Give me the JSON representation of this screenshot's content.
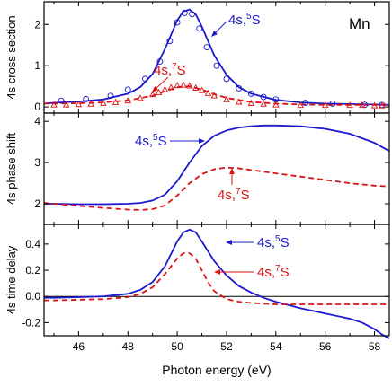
{
  "element_label": "Mn",
  "colors": {
    "blue": "#1a1acc",
    "red": "#dd1111",
    "axis": "#000000"
  },
  "chart_data": [
    {
      "type": "line",
      "ylabel": "4s cross section",
      "xlim": [
        44.6,
        58.6
      ],
      "ylim": [
        -0.15,
        2.55
      ],
      "yticks": [
        "0",
        "1",
        "2"
      ],
      "series": [
        {
          "name": "4s,5S",
          "style": "solid",
          "color": "#1a1acc",
          "x": [
            44.6,
            45,
            46,
            47,
            48,
            48.5,
            49,
            49.5,
            50,
            50.25,
            50.5,
            50.75,
            51,
            51.5,
            52,
            52.5,
            53,
            54,
            55,
            56,
            57,
            58,
            58.6
          ],
          "y": [
            0.08,
            0.1,
            0.13,
            0.18,
            0.32,
            0.48,
            0.8,
            1.4,
            2.1,
            2.32,
            2.36,
            2.25,
            1.95,
            1.25,
            0.78,
            0.48,
            0.32,
            0.17,
            0.11,
            0.08,
            0.07,
            0.06,
            0.05
          ]
        },
        {
          "name": "4s,7S",
          "style": "dashed",
          "color": "#dd1111",
          "x": [
            44.6,
            45,
            46,
            47,
            48,
            49,
            49.5,
            50,
            50.5,
            51,
            51.5,
            52,
            53,
            54,
            55,
            56,
            57,
            58,
            58.6
          ],
          "y": [
            0.08,
            0.08,
            0.09,
            0.11,
            0.16,
            0.27,
            0.38,
            0.48,
            0.5,
            0.42,
            0.31,
            0.22,
            0.12,
            0.08,
            0.06,
            0.05,
            0.05,
            0.05,
            0.05
          ]
        },
        {
          "name": "open circles",
          "style": "circle",
          "color": "#1a1acc",
          "x": [
            45.3,
            46.3,
            47.3,
            48.0,
            48.7,
            49.3,
            49.7,
            50.0,
            50.3,
            50.6,
            50.9,
            51.2,
            51.6,
            52.0,
            52.5,
            53.0,
            53.5,
            54.0,
            55.2,
            56.3,
            57.6,
            58.3
          ],
          "y": [
            0.15,
            0.19,
            0.27,
            0.42,
            0.68,
            1.1,
            1.6,
            2.05,
            2.28,
            2.25,
            1.9,
            1.45,
            1.0,
            0.68,
            0.45,
            0.32,
            0.24,
            0.18,
            0.1,
            0.08,
            0.05,
            0.05
          ]
        },
        {
          "name": "open triangles",
          "style": "triangle",
          "color": "#dd1111",
          "x": [
            45,
            45.5,
            46,
            46.5,
            47,
            47.5,
            48,
            48.5,
            49,
            49.25,
            49.5,
            49.75,
            50,
            50.25,
            50.5,
            50.75,
            51,
            51.25,
            51.5,
            52,
            52.5,
            53,
            53.5,
            54,
            55,
            56,
            57,
            57.5,
            58,
            58.3
          ],
          "y": [
            0.05,
            0.05,
            0.06,
            0.07,
            0.09,
            0.11,
            0.15,
            0.21,
            0.3,
            0.35,
            0.42,
            0.47,
            0.52,
            0.53,
            0.51,
            0.46,
            0.4,
            0.33,
            0.27,
            0.18,
            0.12,
            0.09,
            0.07,
            0.05,
            0.04,
            0.04,
            0.04,
            0.04,
            0.03,
            0.03
          ]
        }
      ],
      "annotations": [
        {
          "base": "4s,",
          "sup": "5",
          "end": "S",
          "color": "#1a1acc"
        },
        {
          "base": "4s,",
          "sup": "7",
          "end": "S",
          "color": "#dd1111"
        }
      ]
    },
    {
      "type": "line",
      "ylabel": "4s phase shift",
      "xlim": [
        44.6,
        58.6
      ],
      "ylim": [
        1.5,
        4.2
      ],
      "yticks": [
        "2",
        "3",
        "4"
      ],
      "series": [
        {
          "name": "4s,5S",
          "style": "solid",
          "color": "#1a1acc",
          "x": [
            44.6,
            45,
            46,
            47,
            48,
            48.5,
            49,
            49.5,
            50,
            50.5,
            51,
            51.5,
            52,
            52.5,
            53,
            53.5,
            54,
            55,
            56,
            57,
            58,
            58.6
          ],
          "y": [
            2.0,
            2.0,
            1.99,
            1.99,
            2.0,
            2.02,
            2.08,
            2.22,
            2.55,
            3.0,
            3.4,
            3.65,
            3.78,
            3.85,
            3.88,
            3.9,
            3.9,
            3.88,
            3.82,
            3.7,
            3.48,
            3.28
          ]
        },
        {
          "name": "4s,7S",
          "style": "dashed",
          "color": "#dd1111",
          "x": [
            44.6,
            45,
            46,
            47,
            48,
            48.5,
            49,
            49.5,
            50,
            50.5,
            51,
            51.5,
            52,
            52.5,
            53,
            54,
            55,
            56,
            57,
            58,
            58.6
          ],
          "y": [
            2.02,
            2.0,
            1.95,
            1.9,
            1.86,
            1.85,
            1.87,
            1.96,
            2.2,
            2.5,
            2.72,
            2.84,
            2.88,
            2.86,
            2.82,
            2.74,
            2.66,
            2.58,
            2.5,
            2.44,
            2.42
          ]
        }
      ],
      "annotations": [
        {
          "base": "4s,",
          "sup": "5",
          "end": "S",
          "color": "#1a1acc"
        },
        {
          "base": "4s,",
          "sup": "7",
          "end": "S",
          "color": "#dd1111"
        }
      ]
    },
    {
      "type": "line",
      "ylabel": "4s time delay",
      "xlabel": "Photon energy (eV)",
      "xlim": [
        44.6,
        58.6
      ],
      "ylim": [
        -0.3,
        0.55
      ],
      "xticks": [
        "46",
        "48",
        "50",
        "52",
        "54",
        "56",
        "58"
      ],
      "yticks": [
        "-0.2",
        "0.0",
        "0.2",
        "0.4"
      ],
      "series": [
        {
          "name": "4s,5S",
          "style": "solid",
          "color": "#1a1acc",
          "x": [
            44.6,
            45,
            46,
            47,
            48,
            48.5,
            49,
            49.5,
            50,
            50.25,
            50.5,
            50.75,
            51,
            51.5,
            52,
            52.5,
            53,
            53.5,
            54,
            55,
            56,
            57,
            57.5,
            58,
            58.3,
            58.6
          ],
          "y": [
            -0.01,
            -0.01,
            -0.005,
            0,
            0.02,
            0.05,
            0.11,
            0.23,
            0.42,
            0.49,
            0.51,
            0.49,
            0.42,
            0.27,
            0.16,
            0.08,
            0.03,
            -0.01,
            -0.04,
            -0.09,
            -0.13,
            -0.17,
            -0.2,
            -0.25,
            -0.29,
            -0.32
          ]
        },
        {
          "name": "4s,7S",
          "style": "dashed",
          "color": "#dd1111",
          "x": [
            44.6,
            45,
            46,
            47,
            48,
            48.5,
            49,
            49.5,
            50,
            50.25,
            50.5,
            50.75,
            51,
            51.25,
            51.5,
            52,
            52.5,
            53,
            54,
            55,
            56,
            57,
            58,
            58.6
          ],
          "y": [
            -0.03,
            -0.03,
            -0.025,
            -0.02,
            -0.005,
            0.02,
            0.07,
            0.17,
            0.29,
            0.33,
            0.33,
            0.29,
            0.2,
            0.11,
            0.04,
            -0.02,
            -0.04,
            -0.05,
            -0.06,
            -0.06,
            -0.06,
            -0.06,
            -0.06,
            -0.06
          ]
        }
      ],
      "annotations": [
        {
          "base": "4s,",
          "sup": "5",
          "end": "S",
          "color": "#1a1acc"
        },
        {
          "base": "4s,",
          "sup": "7",
          "end": "S",
          "color": "#dd1111"
        }
      ]
    }
  ]
}
